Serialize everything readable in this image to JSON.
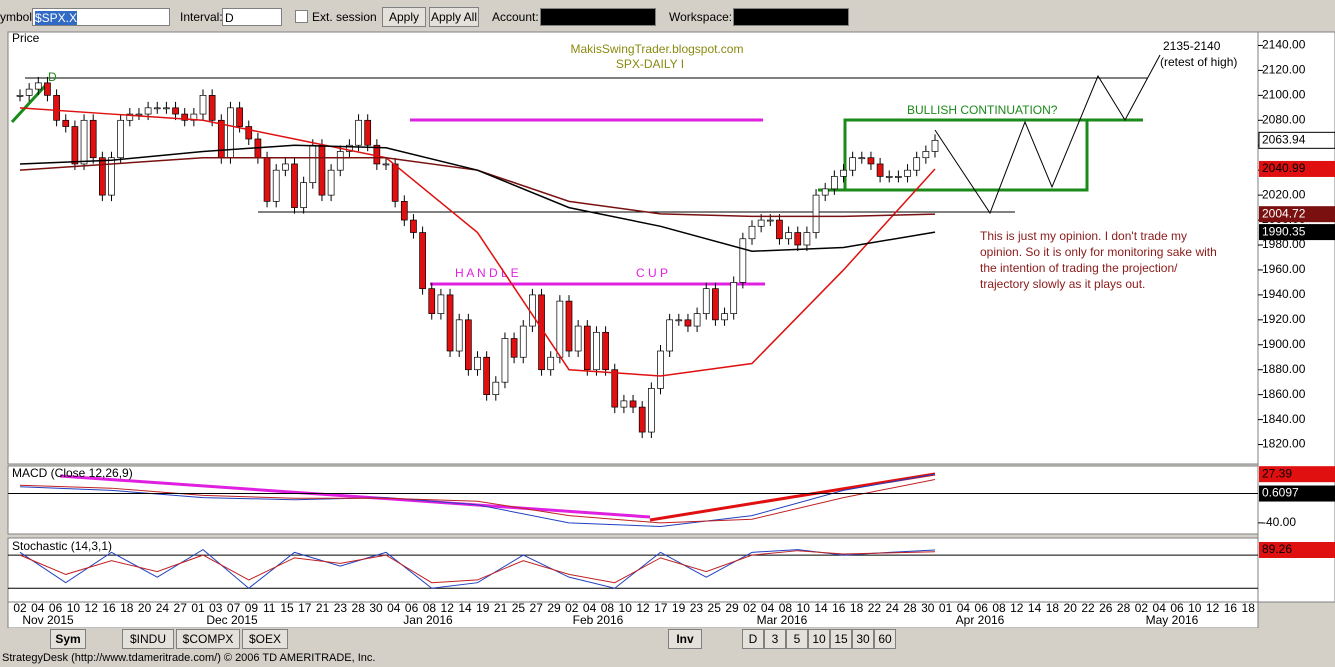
{
  "toolbar": {
    "symbol_label": "ymbol:",
    "symbol": "$SPX.X",
    "interval_label": "Interval:",
    "interval": "D",
    "ext_session": "Ext. session",
    "apply": "Apply",
    "apply_all": "Apply All",
    "account_label": "Account:",
    "workspace_label": "Workspace:"
  },
  "annotations": {
    "site": "MakisSwingTrader.blogspot.com",
    "chart_name": "SPX-DAILY  I",
    "bullish": "BULLISH CONTINUATION?",
    "handle": "H A N D L E",
    "cup": "C U P",
    "target": "2135-2140",
    "target_note": "(retest of high)",
    "note": "This is just my opinion. I don't trade my opinion. So it is only for monitoring sake with the intention of trading the projection/ trajectory slowly as it plays out.",
    "d_mark": "D"
  },
  "chart_data": {
    "type": "candlestick",
    "panel_label": "Price",
    "close": [
      2100,
      2105,
      2110,
      2100,
      2080,
      2075,
      2045,
      2080,
      2050,
      2020,
      2050,
      2080,
      2085,
      2085,
      2090,
      2090,
      2090,
      2085,
      2080,
      2085,
      2100,
      2080,
      2050,
      2090,
      2075,
      2065,
      2050,
      2015,
      2040,
      2045,
      2010,
      2030,
      2060,
      2020,
      2040,
      2055,
      2060,
      2080,
      2060,
      2045,
      2045,
      2015,
      2000,
      1990,
      1945,
      1925,
      1940,
      1895,
      1920,
      1880,
      1890,
      1860,
      1870,
      1905,
      1890,
      1915,
      1940,
      1880,
      1890,
      1935,
      1895,
      1915,
      1880,
      1910,
      1880,
      1850,
      1855,
      1850,
      1830,
      1865,
      1895,
      1920,
      1920,
      1915,
      1925,
      1945,
      1920,
      1925,
      1950,
      1985,
      1995,
      2000,
      2000,
      1985,
      1990,
      1980,
      1990,
      2020,
      2025,
      2035,
      2040,
      2050,
      2050,
      2045,
      2035,
      2035,
      2035,
      2040,
      2050,
      2055,
      2063.94
    ],
    "up_color": "#ffffff",
    "down_color": "#e01010",
    "averages": [
      {
        "color": "#e01010",
        "x": [
          0,
          10,
          20,
          30,
          40,
          50,
          60,
          70,
          80,
          90,
          100
        ],
        "values": [
          2090,
          2085,
          2080,
          2065,
          2050,
          1990,
          1880,
          1875,
          1885,
          1960,
          2040.99
        ]
      },
      {
        "color": "#7a1010",
        "x": [
          0,
          10,
          20,
          30,
          40,
          50,
          60,
          70,
          80,
          90,
          100
        ],
        "values": [
          2040,
          2045,
          2050,
          2050,
          2050,
          2040,
          2015,
          2005,
          2003,
          2003,
          2004.72
        ]
      },
      {
        "color": "#000000",
        "x": [
          0,
          10,
          20,
          30,
          40,
          50,
          60,
          70,
          80,
          90,
          100
        ],
        "values": [
          2045,
          2048,
          2055,
          2060,
          2058,
          2040,
          2010,
          1995,
          1975,
          1978,
          1990.35
        ]
      }
    ],
    "last_price": 2063.94,
    "ylim": [
      1806,
      2150
    ],
    "yticks": [
      {
        "value": 2140,
        "label": "2140.00"
      },
      {
        "value": 2120,
        "label": "2120.00"
      },
      {
        "value": 2100,
        "label": "2100.00"
      },
      {
        "value": 2080,
        "label": "2080.00"
      },
      {
        "value": 2060,
        "label": "2060.00"
      },
      {
        "value": 2040,
        "label": "2040.00"
      },
      {
        "value": 2020,
        "label": "2020.00"
      },
      {
        "value": 2000,
        "label": "2000.00"
      },
      {
        "value": 1980,
        "label": "1980.00"
      },
      {
        "value": 1960,
        "label": "1960.00"
      },
      {
        "value": 1940,
        "label": "1940.00"
      },
      {
        "value": 1920,
        "label": "1920.00"
      },
      {
        "value": 1900,
        "label": "1900.00"
      },
      {
        "value": 1880,
        "label": "1880.00"
      },
      {
        "value": 1860,
        "label": "1860.00"
      },
      {
        "value": 1840,
        "label": "1840.00"
      },
      {
        "value": 1820,
        "label": "1820.00"
      }
    ],
    "x_labels": [
      "02",
      "04",
      "06",
      "10",
      "12",
      "16",
      "18",
      "20",
      "24",
      "27",
      "01",
      "03",
      "07",
      "09",
      "11",
      "15",
      "17",
      "21",
      "23",
      "28",
      "30",
      "04",
      "06",
      "08",
      "12",
      "14",
      "19",
      "21",
      "25",
      "27",
      "29",
      "02",
      "04",
      "08",
      "10",
      "12",
      "17",
      "19",
      "23",
      "25",
      "29",
      "02",
      "04",
      "08",
      "10",
      "14",
      "16",
      "18",
      "22",
      "24",
      "28",
      "30",
      "01",
      "04",
      "06",
      "08",
      "12",
      "14",
      "18",
      "20",
      "22",
      "26",
      "28",
      "02",
      "04",
      "06",
      "10",
      "12",
      "16",
      "18"
    ],
    "months": [
      "Nov 2015",
      "Dec 2015",
      "Jan 2016",
      "Feb 2016",
      "Mar 2016",
      "Apr 2016",
      "May 2016"
    ],
    "macd": {
      "label": "MACD (Close 12,26,9)",
      "ylim": [
        -54,
        38.7
      ],
      "yticks": [
        {
          "value": -40,
          "label": "-40.00"
        }
      ],
      "x": [
        0,
        10,
        20,
        30,
        40,
        50,
        60,
        70,
        80,
        90,
        100
      ],
      "macd": [
        10,
        5,
        -5,
        -8,
        -5,
        -15,
        -40,
        -45,
        -30,
        5,
        27.39
      ],
      "signal": [
        12,
        8,
        -2,
        -6,
        -6,
        -10,
        -30,
        -40,
        -35,
        -5,
        20
      ],
      "histogram_last": 0.6097
    },
    "stochastic": {
      "label": "Stochastic (14,3,1)",
      "ylim": [
        -5,
        111
      ],
      "levels": [
        80,
        20
      ],
      "x": [
        0,
        5,
        10,
        15,
        20,
        25,
        30,
        35,
        40,
        45,
        50,
        55,
        60,
        65,
        70,
        75,
        80,
        85,
        90,
        95,
        100
      ],
      "k": [
        85,
        30,
        85,
        40,
        90,
        20,
        85,
        60,
        85,
        20,
        30,
        80,
        40,
        20,
        85,
        40,
        85,
        90,
        80,
        85,
        89.26
      ],
      "d": [
        80,
        45,
        70,
        50,
        80,
        35,
        75,
        65,
        80,
        30,
        35,
        70,
        45,
        30,
        75,
        50,
        80,
        88,
        82,
        84,
        86
      ]
    }
  },
  "bottom": {
    "sym": "Sym",
    "symbols": [
      "$INDU",
      "$COMPX",
      "$OEX"
    ],
    "inv": "Inv",
    "intervals": [
      "D",
      "3",
      "5",
      "10",
      "15",
      "30",
      "60"
    ],
    "status": "StrategyDesk (http://www.tdameritrade.com/) © 2006 TD AMERITRADE, Inc."
  }
}
